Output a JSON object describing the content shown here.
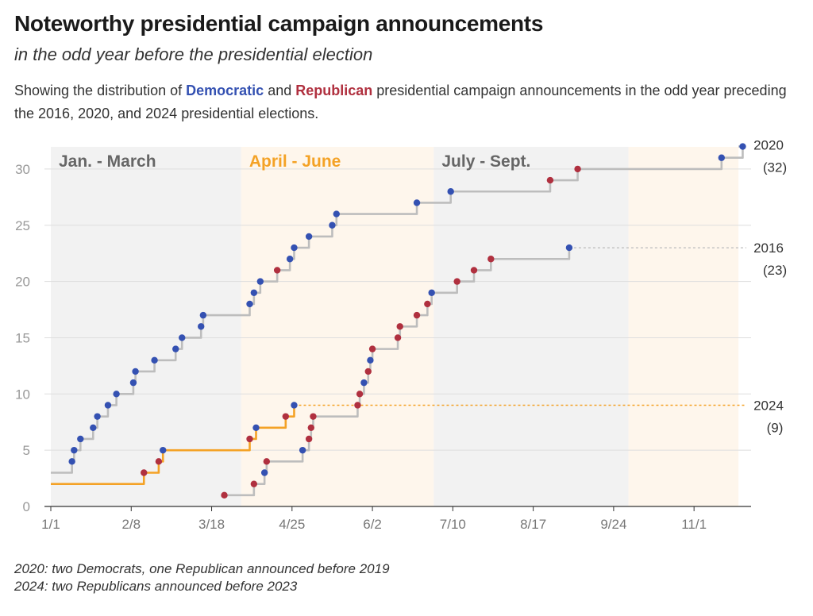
{
  "title": "Noteworthy presidential campaign announcements",
  "subtitle": "in the odd year before the presidential election",
  "description": {
    "before": "Showing the distribution of ",
    "dem_word": "Democratic",
    "mid": " and ",
    "rep_word": "Republican",
    "after": " presidential campaign announcements in the odd year preceding the 2016, 2020, and 2024 presidential elections."
  },
  "notes": [
    "2020: two Democrats, one Republican announced before 2019",
    "2024: two Republicans announced before 2023"
  ],
  "colors": {
    "democratic": "#3451b2",
    "republican": "#b0303f",
    "line_2016_2020": "#bdbdbd",
    "line_2024": "#f4a226",
    "quarter_gray": "#f2f2f2",
    "quarter_peach": "#fef6ec",
    "quarter_label_gray": "#666666",
    "quarter_label_orange": "#f4a226"
  },
  "chart_data": {
    "type": "line",
    "step": true,
    "x_unit": "day of year",
    "x_ticks": [
      {
        "day": 1,
        "label": "1/1"
      },
      {
        "day": 39,
        "label": "2/8"
      },
      {
        "day": 77,
        "label": "3/18"
      },
      {
        "day": 115,
        "label": "4/25"
      },
      {
        "day": 153,
        "label": "6/2"
      },
      {
        "day": 191,
        "label": "7/10"
      },
      {
        "day": 229,
        "label": "8/17"
      },
      {
        "day": 267,
        "label": "9/24"
      },
      {
        "day": 305,
        "label": "11/1"
      }
    ],
    "y_ticks": [
      0,
      5,
      10,
      15,
      20,
      25,
      30
    ],
    "ylim": [
      0,
      32
    ],
    "xlim": [
      1,
      327
    ],
    "quarters": [
      {
        "label": "Jan. - March",
        "start": 1,
        "end": 91,
        "shade": "gray",
        "label_color": "gray"
      },
      {
        "label": "April - June",
        "start": 91,
        "end": 182,
        "shade": "peach",
        "label_color": "orange"
      },
      {
        "label": "July - Sept.",
        "start": 182,
        "end": 274,
        "shade": "gray",
        "label_color": "gray"
      },
      {
        "label": "",
        "start": 274,
        "end": 326,
        "shade": "peach",
        "label_color": "gray"
      }
    ],
    "series": [
      {
        "name": "2020",
        "end_label": "2020",
        "end_count": "(32)",
        "line": "gray",
        "start": {
          "day": 1,
          "value": 3
        },
        "end_day": 326,
        "points": [
          {
            "day": 11,
            "value": 4,
            "party": "D"
          },
          {
            "day": 12,
            "value": 5,
            "party": "D"
          },
          {
            "day": 15,
            "value": 6,
            "party": "D"
          },
          {
            "day": 21,
            "value": 7,
            "party": "D"
          },
          {
            "day": 23,
            "value": 8,
            "party": "D"
          },
          {
            "day": 28,
            "value": 9,
            "party": "D"
          },
          {
            "day": 32,
            "value": 10,
            "party": "D"
          },
          {
            "day": 40,
            "value": 11,
            "party": "D"
          },
          {
            "day": 41,
            "value": 12,
            "party": "D"
          },
          {
            "day": 50,
            "value": 13,
            "party": "D"
          },
          {
            "day": 60,
            "value": 14,
            "party": "D"
          },
          {
            "day": 63,
            "value": 15,
            "party": "D"
          },
          {
            "day": 72,
            "value": 16,
            "party": "D"
          },
          {
            "day": 73,
            "value": 17,
            "party": "D"
          },
          {
            "day": 95,
            "value": 18,
            "party": "D"
          },
          {
            "day": 97,
            "value": 19,
            "party": "D"
          },
          {
            "day": 100,
            "value": 20,
            "party": "D"
          },
          {
            "day": 108,
            "value": 21,
            "party": "R"
          },
          {
            "day": 114,
            "value": 22,
            "party": "D"
          },
          {
            "day": 116,
            "value": 23,
            "party": "D"
          },
          {
            "day": 123,
            "value": 24,
            "party": "D"
          },
          {
            "day": 134,
            "value": 25,
            "party": "D"
          },
          {
            "day": 136,
            "value": 26,
            "party": "D"
          },
          {
            "day": 174,
            "value": 27,
            "party": "D"
          },
          {
            "day": 190,
            "value": 28,
            "party": "D"
          },
          {
            "day": 237,
            "value": 29,
            "party": "R"
          },
          {
            "day": 250,
            "value": 30,
            "party": "R"
          },
          {
            "day": 318,
            "value": 31,
            "party": "D"
          },
          {
            "day": 328,
            "value": 32,
            "party": "D"
          }
        ]
      },
      {
        "name": "2016",
        "end_label": "2016",
        "end_count": "(23)",
        "line": "gray",
        "leader_from_day": 246,
        "points": [
          {
            "day": 83,
            "value": 1,
            "party": "R"
          },
          {
            "day": 97,
            "value": 2,
            "party": "R"
          },
          {
            "day": 102,
            "value": 3,
            "party": "D"
          },
          {
            "day": 103,
            "value": 4,
            "party": "R"
          },
          {
            "day": 120,
            "value": 5,
            "party": "D"
          },
          {
            "day": 123,
            "value": 6,
            "party": "R"
          },
          {
            "day": 124,
            "value": 7,
            "party": "R"
          },
          {
            "day": 125,
            "value": 8,
            "party": "R"
          },
          {
            "day": 146,
            "value": 9,
            "party": "R"
          },
          {
            "day": 147,
            "value": 10,
            "party": "R"
          },
          {
            "day": 149,
            "value": 11,
            "party": "D"
          },
          {
            "day": 151,
            "value": 12,
            "party": "R"
          },
          {
            "day": 152,
            "value": 13,
            "party": "D"
          },
          {
            "day": 153,
            "value": 14,
            "party": "R"
          },
          {
            "day": 165,
            "value": 15,
            "party": "R"
          },
          {
            "day": 166,
            "value": 16,
            "party": "R"
          },
          {
            "day": 174,
            "value": 17,
            "party": "R"
          },
          {
            "day": 179,
            "value": 18,
            "party": "R"
          },
          {
            "day": 181,
            "value": 19,
            "party": "D"
          },
          {
            "day": 193,
            "value": 20,
            "party": "R"
          },
          {
            "day": 201,
            "value": 21,
            "party": "R"
          },
          {
            "day": 209,
            "value": 22,
            "party": "R"
          },
          {
            "day": 246,
            "value": 23,
            "party": "D"
          }
        ]
      },
      {
        "name": "2024",
        "end_label": "2024",
        "end_count": "(9)",
        "line": "orange",
        "start": {
          "day": 1,
          "value": 2
        },
        "leader_from_day": 116,
        "points": [
          {
            "day": 45,
            "value": 3,
            "party": "R"
          },
          {
            "day": 52,
            "value": 4,
            "party": "R"
          },
          {
            "day": 54,
            "value": 5,
            "party": "D"
          },
          {
            "day": 95,
            "value": 6,
            "party": "R"
          },
          {
            "day": 98,
            "value": 7,
            "party": "D"
          },
          {
            "day": 112,
            "value": 8,
            "party": "R"
          },
          {
            "day": 116,
            "value": 9,
            "party": "D"
          }
        ]
      }
    ]
  }
}
